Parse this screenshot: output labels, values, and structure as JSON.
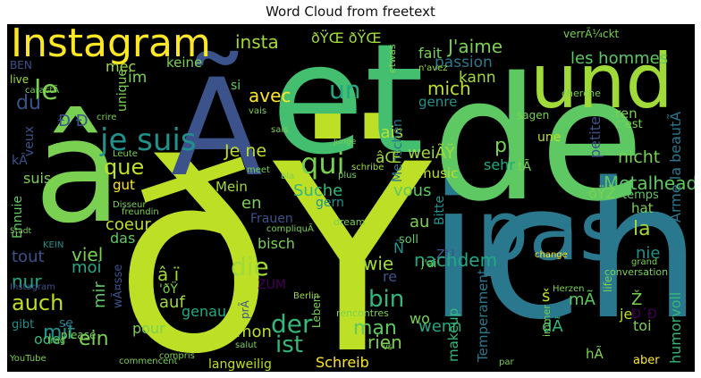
{
  "title": "Word Cloud from freetext",
  "words": [
    {
      "text": "ðŸ",
      "color": "#bddf26"
    },
    {
      "text": "ich",
      "color": "#2a788e"
    },
    {
      "text": "de",
      "color": "#5ec962"
    },
    {
      "text": "et",
      "color": "#44bf70"
    },
    {
      "text": "Ã",
      "color": "#3b528b"
    },
    {
      "text": "â",
      "color": "#7ad151"
    },
    {
      "text": "und",
      "color": "#a0da39"
    },
    {
      "text": "pas",
      "color": "#2a788e"
    },
    {
      "text": "Instagram",
      "color": "#fde725"
    },
    {
      "text": "je suis",
      "color": "#21918c"
    },
    {
      "text": "qui",
      "color": "#7ad151"
    },
    {
      "text": "un",
      "color": "#22a884"
    },
    {
      "text": "le",
      "color": "#7ad151"
    },
    {
      "text": "du",
      "color": "#3b528b"
    },
    {
      "text": "que",
      "color": "#bddf26"
    },
    {
      "text": "die",
      "color": "#a0da39"
    },
    {
      "text": "der",
      "color": "#35b779"
    },
    {
      "text": "ist",
      "color": "#35b779"
    },
    {
      "text": "man",
      "color": "#5ec962"
    },
    {
      "text": "bin",
      "color": "#35b779"
    },
    {
      "text": "auch",
      "color": "#bddf26"
    },
    {
      "text": "mit",
      "color": "#21918c"
    },
    {
      "text": "ein",
      "color": "#7ad151"
    },
    {
      "text": "insta",
      "color": "#a0da39"
    },
    {
      "text": "les hommes",
      "color": "#5ec962"
    },
    {
      "text": "J'aime",
      "color": "#7ad151"
    },
    {
      "text": "passion",
      "color": "#2a788e"
    },
    {
      "text": "kann",
      "color": "#a0da39"
    },
    {
      "text": "mich",
      "color": "#bddf26"
    },
    {
      "text": "genre",
      "color": "#21918c"
    },
    {
      "text": "Je ne",
      "color": "#bddf26"
    },
    {
      "text": "avec",
      "color": "#fde725"
    },
    {
      "text": "mais",
      "color": "#bddf26"
    },
    {
      "text": "nicht",
      "color": "#7ad151"
    },
    {
      "text": "sehr",
      "color": "#22a884"
    },
    {
      "text": "Metalhead",
      "color": "#5ec962"
    },
    {
      "text": "la",
      "color": "#a0da39"
    },
    {
      "text": "vous",
      "color": "#5ec962"
    },
    {
      "text": "Suche",
      "color": "#35b779"
    },
    {
      "text": "en",
      "color": "#7ad151"
    },
    {
      "text": "coeur",
      "color": "#bddf26"
    },
    {
      "text": "viel",
      "color": "#7ad151"
    },
    {
      "text": "moi",
      "color": "#22a884"
    },
    {
      "text": "tout",
      "color": "#3b528b"
    },
    {
      "text": "nur",
      "color": "#22a884"
    },
    {
      "text": "wie",
      "color": "#a0da39"
    },
    {
      "text": "zu",
      "color": "#3b528b"
    },
    {
      "text": "nachdem",
      "color": "#22a884"
    },
    {
      "text": "nie",
      "color": "#21918c"
    },
    {
      "text": "wenn",
      "color": "#22a884"
    },
    {
      "text": "rien",
      "color": "#7ad151"
    },
    {
      "text": "makeup",
      "color": "#35b779"
    },
    {
      "text": "Temperament",
      "color": "#2a788e"
    },
    {
      "text": "humorvoll",
      "color": "#35b779"
    },
    {
      "text": "Schreib",
      "color": "#fde725"
    },
    {
      "text": "langweilig",
      "color": "#bddf26"
    },
    {
      "text": "mon",
      "color": "#bddf26"
    },
    {
      "text": "pour",
      "color": "#7ad151"
    },
    {
      "text": "genau",
      "color": "#22a884"
    },
    {
      "text": "oder",
      "color": "#35b779"
    },
    {
      "text": "Ennuie",
      "color": "#5ec962"
    },
    {
      "text": "suis",
      "color": "#7ad151"
    },
    {
      "text": "Frauen",
      "color": "#3b528b"
    },
    {
      "text": "gut",
      "color": "#fde725"
    },
    {
      "text": "Mein",
      "color": "#a0da39"
    },
    {
      "text": "bisch",
      "color": "#7ad151"
    },
    {
      "text": "das",
      "color": "#5ec962"
    },
    {
      "text": "music",
      "color": "#bddf26"
    },
    {
      "text": "gern",
      "color": "#21918c"
    },
    {
      "text": "au",
      "color": "#7ad151"
    },
    {
      "text": "hat",
      "color": "#7ad151"
    },
    {
      "text": "toi",
      "color": "#7ad151"
    },
    {
      "text": "ren",
      "color": "#7ad151"
    },
    {
      "text": "temps",
      "color": "#5ec962"
    },
    {
      "text": "aber",
      "color": "#fde725"
    },
    {
      "text": "keine",
      "color": "#7ad151"
    },
    {
      "text": "mec",
      "color": "#a0da39"
    },
    {
      "text": "im",
      "color": "#7ad151"
    },
    {
      "text": "si",
      "color": "#5ec962"
    },
    {
      "text": "fait",
      "color": "#7ad151"
    },
    {
      "text": "BEN",
      "color": "#3b528b"
    },
    {
      "text": "live",
      "color": "#a0da39"
    },
    {
      "text": "unique",
      "color": "#7ad151"
    },
    {
      "text": "sagen",
      "color": "#7ad151"
    },
    {
      "text": "c'est",
      "color": "#7ad151"
    },
    {
      "text": "Menschen",
      "color": "#2a788e"
    },
    {
      "text": "weiÃŸ",
      "color": "#a0da39"
    },
    {
      "text": "petite",
      "color": "#3b528b"
    },
    {
      "text": "Arme la beautÃ",
      "color": "#2a788e"
    },
    {
      "text": "Bitte",
      "color": "#21918c"
    },
    {
      "text": "soll",
      "color": "#5ec962"
    },
    {
      "text": "se",
      "color": "#2a788e"
    },
    {
      "text": "gibt",
      "color": "#21918c"
    },
    {
      "text": "please",
      "color": "#7ad151"
    },
    {
      "text": "mir",
      "color": "#5ec962"
    },
    {
      "text": "auf",
      "color": "#a0da39"
    },
    {
      "text": "ZUM",
      "color": "#440154"
    },
    {
      "text": "Leben",
      "color": "#7ad151"
    },
    {
      "text": "wo",
      "color": "#7ad151"
    },
    {
      "text": "hÃ",
      "color": "#7ad151"
    },
    {
      "text": "je",
      "color": "#bddf26"
    },
    {
      "text": "dÃ",
      "color": "#35b779"
    },
    {
      "text": "mÃ",
      "color": "#5ec962"
    },
    {
      "text": "Ñ",
      "color": "#21918c"
    },
    {
      "text": "Ž",
      "color": "#7ad151"
    },
    {
      "text": "š",
      "color": "#bddf26"
    },
    {
      "text": "veux",
      "color": "#3b528b"
    },
    {
      "text": "kÃ",
      "color": "#3b528b"
    },
    {
      "text": "p",
      "color": "#7ad151"
    },
    {
      "text": "re",
      "color": "#3b528b"
    },
    {
      "text": "prÃ",
      "color": "#3b528b"
    },
    {
      "text": "wÃ¤sse",
      "color": "#3b528b"
    },
    {
      "text": "Ð Ð",
      "color": "#3b528b"
    },
    {
      "text": "ðŸŽ",
      "color": "#7ad151"
    },
    {
      "text": "âŒ",
      "color": "#a0da39"
    },
    {
      "text": "â ï",
      "color": "#a0da39"
    },
    {
      "text": "'ðŸ",
      "color": "#7ad151"
    },
    {
      "text": "ðŸŒ ðŸŒ",
      "color": "#a0da39"
    },
    {
      "text": "Ð´Ð",
      "color": "#440154"
    },
    {
      "text": "tÃ",
      "color": "#7ad151"
    },
    {
      "text": "verrÃ¼ckt",
      "color": "#7ad151"
    },
    {
      "text": "etwas",
      "color": "#7ad151"
    },
    {
      "text": "une",
      "color": "#bddf26"
    },
    {
      "text": "n'avez",
      "color": "#a0da39"
    },
    {
      "text": "conversation",
      "color": "#7ad151"
    },
    {
      "text": "change",
      "color": "#fde725"
    },
    {
      "text": "grand",
      "color": "#7ad151"
    },
    {
      "text": "compliquÃ",
      "color": "#7ad151"
    },
    {
      "text": "dream",
      "color": "#7ad151"
    },
    {
      "text": "j'ai",
      "color": "#7ad151"
    },
    {
      "text": "rencontres",
      "color": "#7ad151"
    },
    {
      "text": "Berlin",
      "color": "#a0da39"
    },
    {
      "text": "Instagram",
      "color": "#3b528b"
    },
    {
      "text": "commencent",
      "color": "#7ad151"
    },
    {
      "text": "compris",
      "color": "#7ad151"
    },
    {
      "text": "YouTube",
      "color": "#7ad151"
    },
    {
      "text": "Leute",
      "color": "#7ad151"
    },
    {
      "text": "meet",
      "color": "#7ad151"
    },
    {
      "text": "bla",
      "color": "#7ad151"
    },
    {
      "text": "KEIN",
      "color": "#21918c"
    },
    {
      "text": "denn",
      "color": "#7ad151"
    },
    {
      "text": "caractÃ",
      "color": "#7ad151"
    },
    {
      "text": "crire",
      "color": "#7ad151"
    },
    {
      "text": "vais",
      "color": "#7ad151"
    },
    {
      "text": "sais",
      "color": "#7ad151"
    },
    {
      "text": "plus",
      "color": "#7ad151"
    },
    {
      "text": "schribe",
      "color": "#a0da39"
    },
    {
      "text": "cherche",
      "color": "#7ad151"
    },
    {
      "text": "par",
      "color": "#7ad151"
    },
    {
      "text": "immer",
      "color": "#7ad151"
    },
    {
      "text": "vs",
      "color": "#7ad151"
    },
    {
      "text": "salut",
      "color": "#7ad151"
    },
    {
      "text": "frag",
      "color": "#7ad151"
    },
    {
      "text": "Herzen",
      "color": "#7ad151"
    },
    {
      "text": "Junge",
      "color": "#7ad151"
    },
    {
      "text": "Disseur",
      "color": "#7ad151"
    },
    {
      "text": "freundin",
      "color": "#7ad151"
    },
    {
      "text": "Stadt",
      "color": "#7ad151"
    },
    {
      "text": "life",
      "color": "#7ad151"
    }
  ]
}
